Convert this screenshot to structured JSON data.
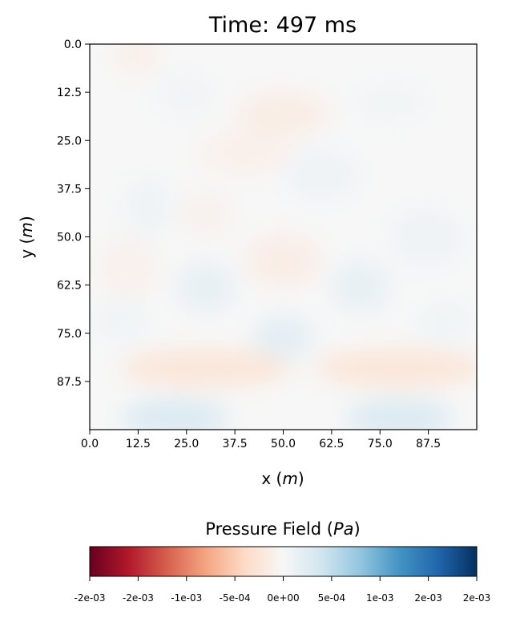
{
  "chart_data": {
    "type": "heatmap",
    "title": "Time:  497 ms",
    "xlabel_text": "x (",
    "xlabel_unit": "m",
    "xlabel_close": ")",
    "ylabel_text": "y (",
    "ylabel_unit": "m",
    "ylabel_close": ")",
    "xlim": [
      0,
      100
    ],
    "ylim": [
      0,
      100
    ],
    "y_inverted": true,
    "x_ticks": [
      0.0,
      12.5,
      25.0,
      37.5,
      50.0,
      62.5,
      75.0,
      87.5
    ],
    "x_tick_labels": [
      "0.0",
      "12.5",
      "25.0",
      "37.5",
      "50.0",
      "62.5",
      "75.0",
      "87.5"
    ],
    "y_ticks": [
      0.0,
      12.5,
      25.0,
      37.5,
      50.0,
      62.5,
      75.0,
      87.5
    ],
    "y_tick_labels": [
      "0.0",
      "12.5",
      "25.0",
      "37.5",
      "50.0",
      "62.5",
      "75.0",
      "87.5"
    ],
    "colormap": "RdBu",
    "vmin": -0.002,
    "vmax": 0.002,
    "field_blobs": [
      {
        "x": 12,
        "y": 3,
        "value": -0.00012,
        "rx": 6,
        "ry": 5
      },
      {
        "x": 25,
        "y": 13,
        "value": 6e-05,
        "rx": 8,
        "ry": 6
      },
      {
        "x": 50,
        "y": 18,
        "value": -0.00015,
        "rx": 12,
        "ry": 6
      },
      {
        "x": 78,
        "y": 15,
        "value": 6e-05,
        "rx": 10,
        "ry": 5
      },
      {
        "x": 40,
        "y": 28,
        "value": -0.0001,
        "rx": 12,
        "ry": 6
      },
      {
        "x": 60,
        "y": 34,
        "value": 8e-05,
        "rx": 10,
        "ry": 7
      },
      {
        "x": 15,
        "y": 42,
        "value": 0.0001,
        "rx": 6,
        "ry": 8
      },
      {
        "x": 30,
        "y": 44,
        "value": -8e-05,
        "rx": 7,
        "ry": 6
      },
      {
        "x": 50,
        "y": 56,
        "value": -0.00014,
        "rx": 10,
        "ry": 7
      },
      {
        "x": 30,
        "y": 63,
        "value": 0.00016,
        "rx": 8,
        "ry": 7
      },
      {
        "x": 70,
        "y": 63,
        "value": 0.00016,
        "rx": 8,
        "ry": 7
      },
      {
        "x": 87,
        "y": 50,
        "value": 8e-05,
        "rx": 10,
        "ry": 8
      },
      {
        "x": 10,
        "y": 58,
        "value": -8e-05,
        "rx": 8,
        "ry": 8
      },
      {
        "x": 50,
        "y": 76,
        "value": 0.0002,
        "rx": 8,
        "ry": 6
      },
      {
        "x": 8,
        "y": 72,
        "value": 7e-05,
        "rx": 8,
        "ry": 6
      },
      {
        "x": 92,
        "y": 72,
        "value": 7e-05,
        "rx": 8,
        "ry": 6
      },
      {
        "x": 30,
        "y": 84,
        "value": -0.00025,
        "rx": 22,
        "ry": 5
      },
      {
        "x": 80,
        "y": 84,
        "value": -0.00025,
        "rx": 22,
        "ry": 5
      },
      {
        "x": 22,
        "y": 97,
        "value": 0.0003,
        "rx": 14,
        "ry": 5
      },
      {
        "x": 80,
        "y": 97,
        "value": 0.0003,
        "rx": 14,
        "ry": 5
      }
    ],
    "colorbar": {
      "title_text": "Pressure Field (",
      "title_unit": "Pa",
      "title_close": ")",
      "ticks": [
        -0.002,
        -0.0015,
        -0.001,
        -0.0005,
        0,
        0.0005,
        0.001,
        0.0015,
        0.002
      ],
      "tick_labels": [
        "-2e-03",
        "-2e-03",
        "-1e-03",
        "-5e-04",
        "0e+00",
        "5e-04",
        "1e-03",
        "2e-03",
        "2e-03"
      ]
    }
  }
}
